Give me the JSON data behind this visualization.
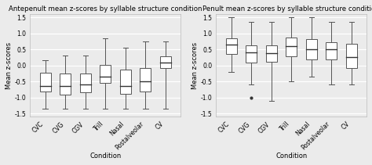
{
  "left_title": "Antepenult mean z-scores by syllable structure condition",
  "right_title": "Penult mean z-scores by syllable structure condition",
  "xlabel": "Condition",
  "ylabel": "Mean z-scores",
  "conditions": [
    "CVC",
    "CVG",
    "CGV",
    "Trill",
    "Nasal",
    "Postalveolar",
    "CV"
  ],
  "left_boxes": [
    {
      "med": -0.65,
      "q1": -0.82,
      "q3": -0.22,
      "whislo": -1.35,
      "whishi": 0.15,
      "fliers": []
    },
    {
      "med": -0.65,
      "q1": -0.92,
      "q3": -0.25,
      "whislo": -1.35,
      "whishi": 0.3,
      "fliers": []
    },
    {
      "med": -0.6,
      "q1": -0.85,
      "q3": -0.25,
      "whislo": -1.35,
      "whishi": 0.3,
      "fliers": []
    },
    {
      "med": -0.35,
      "q1": -0.55,
      "q3": 0.02,
      "whislo": -1.35,
      "whishi": 0.85,
      "fliers": []
    },
    {
      "med": -0.65,
      "q1": -0.9,
      "q3": -0.12,
      "whislo": -1.35,
      "whishi": 0.55,
      "fliers": []
    },
    {
      "med": -0.5,
      "q1": -0.82,
      "q3": -0.08,
      "whislo": -1.35,
      "whishi": 0.75,
      "fliers": []
    },
    {
      "med": 0.1,
      "q1": -0.08,
      "q3": 0.28,
      "whislo": -1.35,
      "whishi": 0.75,
      "fliers": []
    }
  ],
  "right_boxes": [
    {
      "med": 0.65,
      "q1": 0.35,
      "q3": 0.85,
      "whislo": -0.2,
      "whishi": 1.5,
      "fliers": []
    },
    {
      "med": 0.4,
      "q1": 0.1,
      "q3": 0.62,
      "whislo": -0.6,
      "whishi": 1.35,
      "fliers": [
        -1.0
      ]
    },
    {
      "med": 0.38,
      "q1": 0.12,
      "q3": 0.62,
      "whislo": -1.1,
      "whishi": 1.35,
      "fliers": []
    },
    {
      "med": 0.6,
      "q1": 0.28,
      "q3": 0.88,
      "whislo": -0.5,
      "whishi": 1.5,
      "fliers": []
    },
    {
      "med": 0.5,
      "q1": 0.18,
      "q3": 0.82,
      "whislo": -0.35,
      "whishi": 1.5,
      "fliers": []
    },
    {
      "med": 0.5,
      "q1": 0.18,
      "q3": 0.72,
      "whislo": -0.6,
      "whishi": 1.35,
      "fliers": []
    },
    {
      "med": 0.25,
      "q1": -0.08,
      "q3": 0.68,
      "whislo": -0.6,
      "whishi": 1.35,
      "fliers": []
    }
  ],
  "ylim": [
    -1.6,
    1.6
  ],
  "yticks": [
    -1.5,
    -1.0,
    -0.5,
    0.0,
    0.5,
    1.0,
    1.5
  ],
  "bg_color": "#ebebeb",
  "box_facecolor": "white",
  "box_edgecolor": "#555555",
  "median_color": "#333333",
  "whisker_color": "#555555",
  "flier_color": "#333333",
  "title_fontsize": 6.2,
  "label_fontsize": 6.0,
  "tick_fontsize": 5.5
}
